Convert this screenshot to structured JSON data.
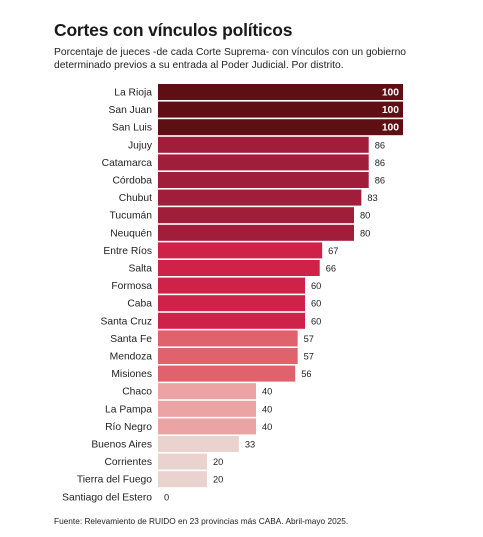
{
  "title": "Cortes con vínculos políticos",
  "subtitle": "Porcentaje de jueces -de cada Corte Suprema- con vínculos con un gobierno determinado previos a su entrada al Poder Judicial. Por distrito.",
  "source": "Fuente: Relevamiento de RUIDO en 23 provincias más CABA. Abril-mayo 2025.",
  "chart_data": {
    "type": "bar",
    "orientation": "horizontal",
    "title": "Cortes con vínculos políticos",
    "xlabel": "",
    "ylabel": "",
    "xlim": [
      0,
      100
    ],
    "grid": false,
    "legend": "none",
    "categories": [
      "La Rioja",
      "San Juan",
      "San Luis",
      "Jujuy",
      "Catamarca",
      "Córdoba",
      "Chubut",
      "Tucumán",
      "Neuquén",
      "Entre Ríos",
      "Salta",
      "Formosa",
      "Caba",
      "Santa Cruz",
      "Santa Fe",
      "Mendoza",
      "Misiones",
      "Chaco",
      "La Pampa",
      "Río Negro",
      "Buenos Aires",
      "Corrientes",
      "Tierra del Fuego",
      "Santiago del Estero"
    ],
    "values": [
      100,
      100,
      100,
      86,
      86,
      86,
      83,
      80,
      80,
      67,
      66,
      60,
      60,
      60,
      57,
      57,
      56,
      40,
      40,
      40,
      33,
      20,
      20,
      0
    ],
    "colors": [
      "#5e0f14",
      "#5e0f14",
      "#5e0f14",
      "#a01e3a",
      "#a01e3a",
      "#a01e3a",
      "#a01e3a",
      "#a01e3a",
      "#a01e3a",
      "#cf2249",
      "#cf2249",
      "#cf2249",
      "#cf2249",
      "#cf2249",
      "#e0626c",
      "#e0626c",
      "#e0626c",
      "#eba3a3",
      "#eba3a3",
      "#eba3a3",
      "#ead2cf",
      "#ead2cf",
      "#ead2cf",
      "#ead2cf"
    ],
    "label_colors": {
      "inside": "#ffffff",
      "outside": "#222222"
    }
  }
}
